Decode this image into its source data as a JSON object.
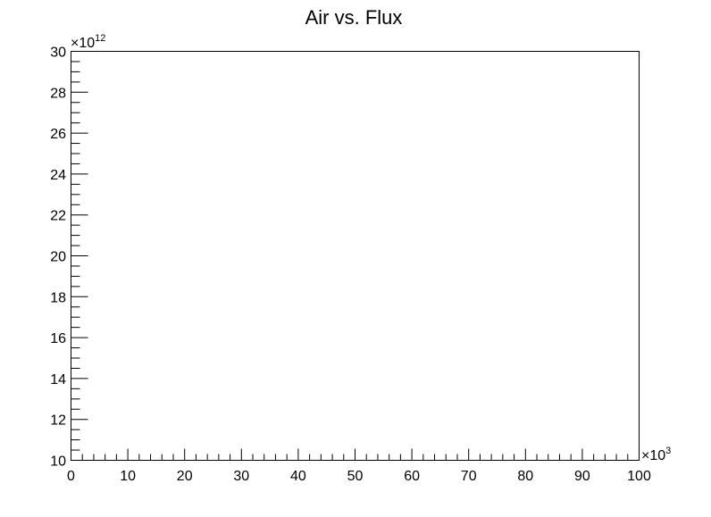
{
  "chart_data": {
    "type": "scatter",
    "title": "Air vs. Flux",
    "xlabel": "",
    "ylabel": "",
    "xlim": [
      0,
      100
    ],
    "ylim": [
      10,
      30
    ],
    "x_multiplier": "×10",
    "x_exponent": "3",
    "y_multiplier": "×10",
    "y_exponent": "12",
    "x_ticks": [
      "0",
      "10",
      "20",
      "30",
      "40",
      "50",
      "60",
      "70",
      "80",
      "90",
      "100"
    ],
    "y_ticks": [
      "10",
      "12",
      "14",
      "16",
      "18",
      "20",
      "22",
      "24",
      "26",
      "28",
      "30"
    ],
    "grid": false,
    "series": []
  }
}
